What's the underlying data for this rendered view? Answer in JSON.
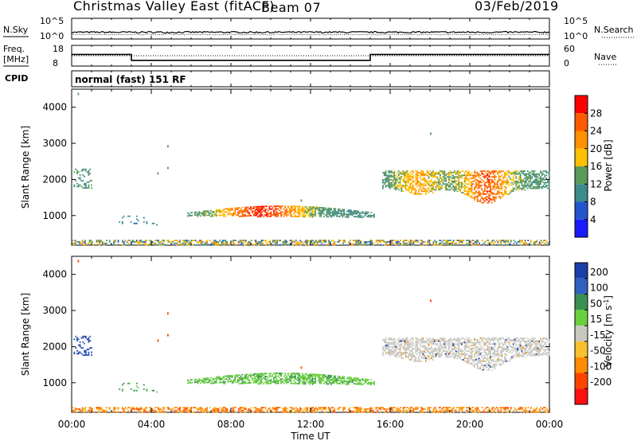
{
  "header": {
    "title": "Christmas Valley East (fitACF)",
    "beam": "Beam 07",
    "date": "03/Feb/2019"
  },
  "status_panels": {
    "nsky_label": "N.Sky",
    "nsky_ticks": [
      "10^5",
      "10^0"
    ],
    "nsearch_label": "N.Search",
    "nsearch_ticks": [
      "10^5",
      "10^0"
    ],
    "freq_label": [
      "Freq.",
      "[MHz]"
    ],
    "freq_ticks": [
      "18",
      "8"
    ],
    "nave_label": "Nave",
    "nave_ticks": [
      "60",
      "0"
    ],
    "cpid_label": "CPID",
    "cpid_text": "normal (fast) 151 RF",
    "freq_series": {
      "x": [
        "00:00",
        "03:00",
        "03:00",
        "15:00",
        "15:00",
        "24:00"
      ],
      "y": [
        14.2,
        14.2,
        10.8,
        10.8,
        14.2,
        14.2
      ]
    }
  },
  "chart_data": [
    {
      "type": "heatmap",
      "panel": "power",
      "ylabel": "Slant Range [km]",
      "yticks": [
        "1000",
        "2000",
        "3000",
        "4000"
      ],
      "ylim": [
        180,
        4500
      ],
      "xlim": [
        "00:00",
        "24:00"
      ],
      "colorbar": {
        "label": "Power [dB]",
        "ticks": [
          "4",
          "8",
          "12",
          "16",
          "20",
          "24",
          "28"
        ],
        "range": [
          0,
          32
        ],
        "colors": [
          "#1a1aff",
          "#2255cc",
          "#3d8a8a",
          "#5a9a5a",
          "#ffc000",
          "#ff9000",
          "#ff5a00",
          "#ff0000"
        ]
      }
    },
    {
      "type": "heatmap",
      "panel": "velocity",
      "ylabel": "Slant Range [km]",
      "yticks": [
        "1000",
        "2000",
        "3000",
        "4000"
      ],
      "ylim": [
        180,
        4500
      ],
      "xlim": [
        "00:00",
        "24:00"
      ],
      "xlabel": "Time UT",
      "xticks": [
        "00:00",
        "04:00",
        "08:00",
        "12:00",
        "16:00",
        "20:00",
        "00:00"
      ],
      "colorbar": {
        "label": "Velocity [m s^-1]",
        "ticks": [
          "200",
          "100",
          "50",
          "15",
          "-15",
          "-50",
          "-100",
          "-200"
        ],
        "colors": [
          "#1c3ea8",
          "#3060c0",
          "#3a9050",
          "#6ad040",
          "#c8c8c0",
          "#f8c030",
          "#ff8c00",
          "#ff4400",
          "#ff1010"
        ]
      }
    }
  ]
}
